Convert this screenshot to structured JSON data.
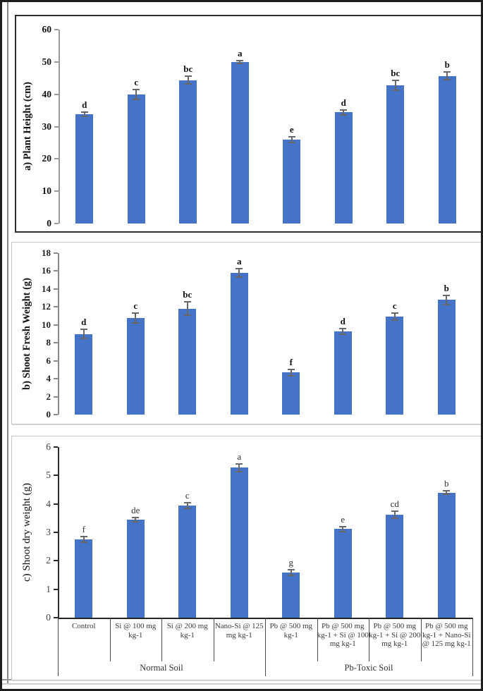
{
  "figure": {
    "categories": [
      "Control",
      "Si @ 100 mg kg-1",
      "Si @ 200 mg kg-1",
      "Nano-Si @ 125 mg kg-1",
      "Pb @ 500 mg kg-1",
      "Pb @ 500 mg kg-1 + Si @ 100 mg kg-1",
      "Pb @ 500 mg kg-1 + Si @ 200 mg kg-1",
      "Pb @ 500 mg kg-1 + Nano-Si @ 125 mg kg-1"
    ],
    "group_labels": [
      "Normal Soil",
      "Pb-Toxic Soil"
    ],
    "bar_color": "#4573C7",
    "error_bar_color": "#676767"
  },
  "chart_data": [
    {
      "id": "a",
      "type": "bar",
      "title": "",
      "ylabel": "a) Plant Height (cm)",
      "xlabel": "",
      "ylim": [
        0,
        60
      ],
      "ytick_step": 10,
      "categories": [
        "Control",
        "Si @ 100 mg kg-1",
        "Si @ 200 mg kg-1",
        "Nano-Si @ 125 mg kg-1",
        "Pb @ 500 mg kg-1",
        "Pb @ 500 mg kg-1 + Si @ 100 mg kg-1",
        "Pb @ 500 mg kg-1 + Si @ 200 mg kg-1",
        "Pb @ 500 mg kg-1 + Nano-Si @ 125 mg kg-1"
      ],
      "values": [
        33.8,
        40.0,
        44.4,
        50.0,
        26.0,
        34.4,
        42.7,
        45.7
      ],
      "errors": [
        0.7,
        1.5,
        1.2,
        0.5,
        0.9,
        0.7,
        1.5,
        1.2
      ],
      "sig_letters": [
        "d",
        "c",
        "bc",
        "a",
        "e",
        "d",
        "bc",
        "b"
      ],
      "grid": false,
      "legend": false,
      "bold_style": true
    },
    {
      "id": "b",
      "type": "bar",
      "title": "",
      "ylabel": "b) Shoot Fresh Weight (g)",
      "xlabel": "",
      "ylim": [
        0,
        18
      ],
      "ytick_step": 2,
      "categories": [
        "Control",
        "Si @ 100 mg kg-1",
        "Si @ 200 mg kg-1",
        "Nano-Si @ 125 mg kg-1",
        "Pb @ 500 mg kg-1",
        "Pb @ 500 mg kg-1 + Si @ 100 mg kg-1",
        "Pb @ 500 mg kg-1 + Si @ 200 mg kg-1",
        "Pb @ 500 mg kg-1 + Nano-Si @ 125 mg kg-1"
      ],
      "values": [
        9.0,
        10.8,
        11.8,
        15.8,
        4.7,
        9.3,
        10.9,
        12.8
      ],
      "errors": [
        0.5,
        0.55,
        0.75,
        0.45,
        0.35,
        0.3,
        0.4,
        0.5
      ],
      "sig_letters": [
        "d",
        "c",
        "bc",
        "a",
        "f",
        "d",
        "c",
        "b"
      ],
      "grid": false,
      "legend": false,
      "bold_style": true
    },
    {
      "id": "c",
      "type": "bar",
      "title": "",
      "ylabel": "c) Shoot dry weight (g)",
      "xlabel": "",
      "ylim": [
        0,
        6
      ],
      "ytick_step": 1,
      "categories": [
        "Control",
        "Si @ 100 mg kg-1",
        "Si @ 200 mg kg-1",
        "Nano-Si @ 125 mg kg-1",
        "Pb @ 500 mg kg-1",
        "Pb @ 500 mg kg-1 + Si @ 100 mg kg-1",
        "Pb @ 500 mg kg-1 + Si @ 200 mg kg-1",
        "Pb @ 500 mg kg-1 + Nano-Si @ 125 mg kg-1"
      ],
      "values": [
        2.75,
        3.45,
        3.95,
        5.27,
        1.58,
        3.12,
        3.62,
        4.4
      ],
      "errors": [
        0.1,
        0.07,
        0.1,
        0.13,
        0.1,
        0.09,
        0.13,
        0.06
      ],
      "sig_letters": [
        "f",
        "de",
        "c",
        "a",
        "g",
        "e",
        "cd",
        "b"
      ],
      "grid": false,
      "legend": false,
      "bold_style": false,
      "category_axis_table": true,
      "group_labels": [
        "Normal Soil",
        "Pb-Toxic Soil"
      ]
    }
  ]
}
